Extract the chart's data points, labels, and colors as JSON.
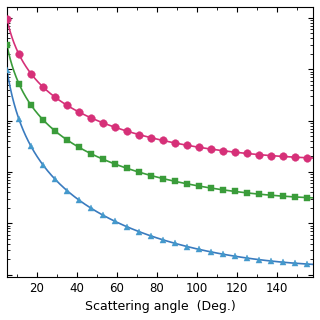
{
  "title": "",
  "xlabel": "Scattering angle  (Deg.)",
  "ylabel": "",
  "xlim": [
    5,
    158
  ],
  "background_color": "#ffffff",
  "x_ticks": [
    20,
    40,
    60,
    80,
    100,
    120,
    140
  ],
  "series": [
    {
      "name": "pink_circles",
      "line_color": "#d63078",
      "marker": "o",
      "marker_color": "#d63078",
      "marker_size": 5.5,
      "a": 5.0,
      "b": 1.8,
      "c": 0.0
    },
    {
      "name": "green_squares",
      "line_color": "#3a9c3a",
      "marker": "s",
      "marker_color": "#3a9c3a",
      "marker_size": 5.0,
      "a": 3.0,
      "b": 2.5,
      "c": 0.0
    },
    {
      "name": "blue_triangles",
      "line_color": "#3a7bbf",
      "marker": "^",
      "marker_color": "#4499cc",
      "marker_size": 5.0,
      "a": 20.0,
      "b": 6.0,
      "c": 0.0
    }
  ]
}
